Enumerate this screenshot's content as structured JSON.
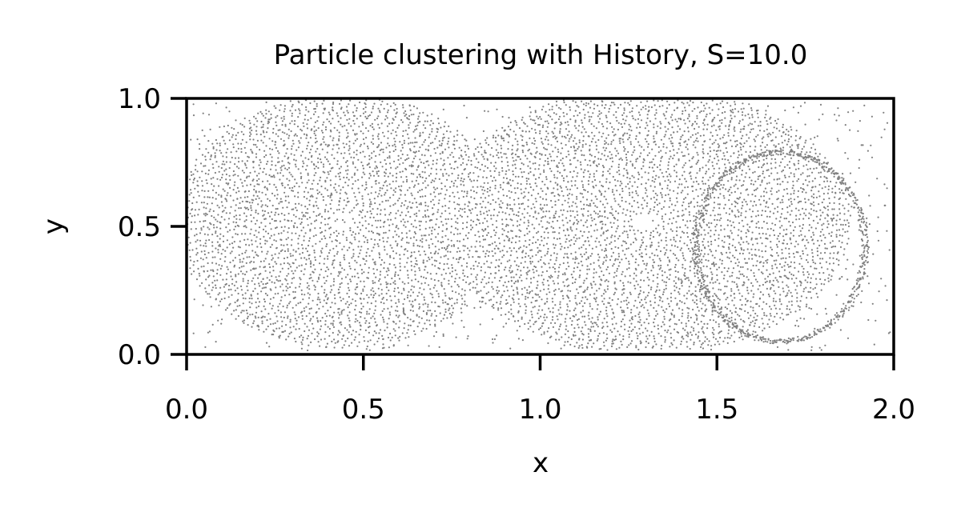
{
  "chart_data": {
    "type": "scatter",
    "title": "Particle clustering with History, S=10.0",
    "xlabel": "x",
    "ylabel": "y",
    "xlim": [
      0.0,
      2.0
    ],
    "ylim": [
      0.0,
      1.0
    ],
    "x_ticks": [
      "0.0",
      "0.5",
      "1.0",
      "1.5",
      "2.0"
    ],
    "y_ticks": [
      "0.0",
      "0.5",
      "1.0"
    ],
    "grid": false,
    "legend": "none",
    "marker_color": "#808080",
    "point_count_approx": 6000,
    "structures": [
      {
        "name": "left cell",
        "center": [
          0.44,
          0.5
        ],
        "span_x": [
          0.0,
          0.8
        ],
        "span_y": [
          0.0,
          1.0
        ]
      },
      {
        "name": "right cell",
        "center": [
          1.35,
          0.5
        ],
        "span_x": [
          0.8,
          2.0
        ],
        "span_y": [
          0.0,
          1.0
        ]
      },
      {
        "name": "dense loop",
        "center": [
          1.67,
          0.43
        ],
        "span_x": [
          1.42,
          1.93
        ],
        "span_y": [
          0.03,
          0.8
        ]
      }
    ]
  }
}
